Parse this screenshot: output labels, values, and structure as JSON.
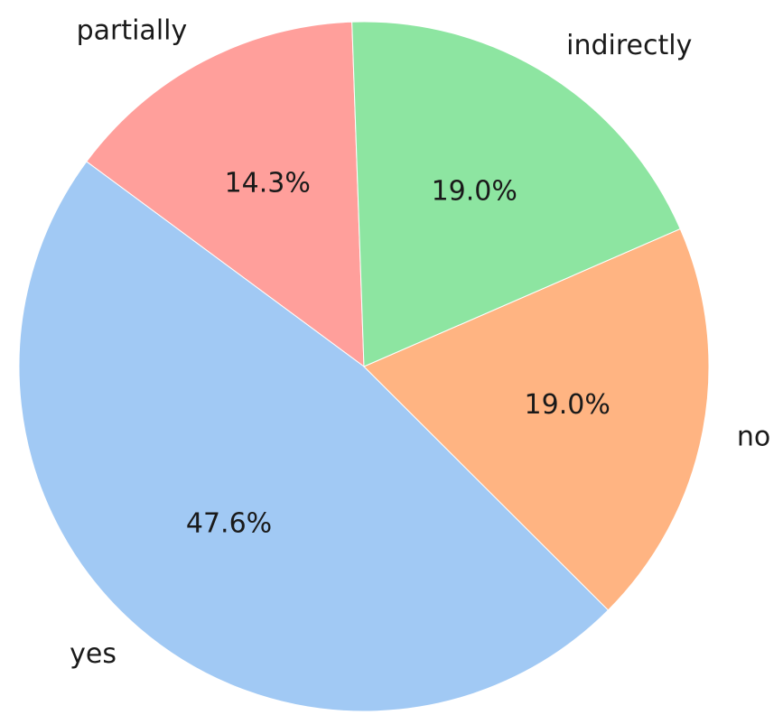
{
  "chart_data": {
    "type": "pie",
    "categories": [
      "partially",
      "yes",
      "no",
      "indirectly"
    ],
    "values": [
      14.3,
      47.6,
      19.0,
      19.0
    ],
    "percent_labels": [
      "14.3%",
      "47.6%",
      "19.0%",
      "19.0%"
    ],
    "colors": [
      "#ff9f9b",
      "#a1c9f4",
      "#ffb482",
      "#8de5a1"
    ],
    "start_angle_deg": 92,
    "direction": "counterclockwise",
    "title": "",
    "legend": "none"
  }
}
